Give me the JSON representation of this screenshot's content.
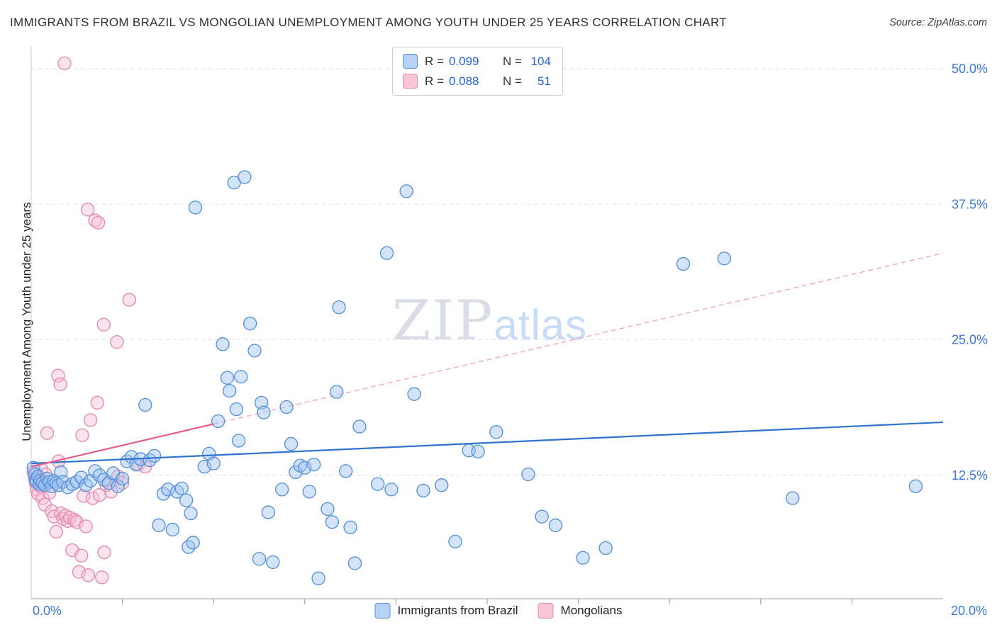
{
  "header": {
    "title": "IMMIGRANTS FROM BRAZIL VS MONGOLIAN UNEMPLOYMENT AMONG YOUTH UNDER 25 YEARS CORRELATION CHART",
    "source": "Source: ZipAtlas.com"
  },
  "watermark": {
    "zip": "ZIP",
    "atlas": "atlas"
  },
  "axes": {
    "y_label": "Unemployment Among Youth under 25 years",
    "x_min_label": "0.0%",
    "x_max_label": "20.0%"
  },
  "stats_legend": {
    "rows": [
      {
        "series": "Immigrants from Brazil",
        "r_label": "R =",
        "r": "0.099",
        "n_label": "N =",
        "n": "104"
      },
      {
        "series": "Mongolians",
        "r_label": "R =",
        "r": "0.088",
        "n_label": "N =",
        "n": "51"
      }
    ]
  },
  "bottom_legend": [
    {
      "label": "Immigrants from Brazil"
    },
    {
      "label": "Mongolians"
    }
  ],
  "colors": {
    "brazil_fill": "#9ec3f1",
    "brazil_stroke": "#5b93d8",
    "brazil_line": "#2e74cf",
    "mongolian_fill": "#f7c2d6",
    "mongolian_stroke": "#e48bb0",
    "mongolian_line": "#e45c8e",
    "mongolian_line_dash": "#f2a0ba",
    "grid": "#e0e0e0",
    "axis_text": "#3b78d8",
    "spine_left": "#cccccc",
    "spine_bottom": "#9a9a9a"
  },
  "chart_data": {
    "type": "scatter",
    "title": "IMMIGRANTS FROM BRAZIL VS MONGOLIAN UNEMPLOYMENT AMONG YOUTH UNDER 25 YEARS CORRELATION CHART",
    "xlabel": "",
    "ylabel": "Unemployment Among Youth under 25 years",
    "xlim": [
      0,
      20
    ],
    "ylim": [
      0,
      52.5
    ],
    "grid": "horizontal-dashed",
    "y_ticks": [
      {
        "value": 50.0,
        "label": "50.0%"
      },
      {
        "value": 37.5,
        "label": "37.5%"
      },
      {
        "value": 25.0,
        "label": "25.0%"
      },
      {
        "value": 12.5,
        "label": "12.5%"
      }
    ],
    "x_tick_values": [
      2,
      4,
      6,
      8,
      10,
      12,
      14,
      16,
      18
    ],
    "series": [
      {
        "name": "Immigrants from Brazil",
        "r": 0.099,
        "n": 104,
        "trend": {
          "x0": 0,
          "y0": 13.6,
          "x1": 20,
          "y1": 17.4,
          "style": "solid"
        },
        "points": [
          [
            0.05,
            13.2
          ],
          [
            0.08,
            12.6
          ],
          [
            0.1,
            12.1
          ],
          [
            0.12,
            11.9
          ],
          [
            0.15,
            12.4
          ],
          [
            0.18,
            11.7
          ],
          [
            0.2,
            12.0
          ],
          [
            0.25,
            11.8
          ],
          [
            0.3,
            11.6
          ],
          [
            0.35,
            12.2
          ],
          [
            0.4,
            11.9
          ],
          [
            0.45,
            11.5
          ],
          [
            0.5,
            12.0
          ],
          [
            0.55,
            11.8
          ],
          [
            0.6,
            11.6
          ],
          [
            0.65,
            12.8
          ],
          [
            0.7,
            11.9
          ],
          [
            0.8,
            11.4
          ],
          [
            0.9,
            11.7
          ],
          [
            1.0,
            11.9
          ],
          [
            1.1,
            12.3
          ],
          [
            1.2,
            11.6
          ],
          [
            1.3,
            12.0
          ],
          [
            1.4,
            12.9
          ],
          [
            1.5,
            12.5
          ],
          [
            1.6,
            12.1
          ],
          [
            1.7,
            11.8
          ],
          [
            1.8,
            12.7
          ],
          [
            1.9,
            11.5
          ],
          [
            2.0,
            12.2
          ],
          [
            2.1,
            13.8
          ],
          [
            2.2,
            14.2
          ],
          [
            2.3,
            13.5
          ],
          [
            2.4,
            14.0
          ],
          [
            2.5,
            19.0
          ],
          [
            2.6,
            13.9
          ],
          [
            2.7,
            14.3
          ],
          [
            2.8,
            7.9
          ],
          [
            2.9,
            10.8
          ],
          [
            3.0,
            11.2
          ],
          [
            3.1,
            7.5
          ],
          [
            3.2,
            11.0
          ],
          [
            3.3,
            11.3
          ],
          [
            3.4,
            10.2
          ],
          [
            3.45,
            5.9
          ],
          [
            3.5,
            9.0
          ],
          [
            3.55,
            6.3
          ],
          [
            3.8,
            13.3
          ],
          [
            3.9,
            14.5
          ],
          [
            4.0,
            13.6
          ],
          [
            4.1,
            17.5
          ],
          [
            4.2,
            24.6
          ],
          [
            4.3,
            21.5
          ],
          [
            4.35,
            20.3
          ],
          [
            4.5,
            18.6
          ],
          [
            4.55,
            15.7
          ],
          [
            4.6,
            21.6
          ],
          [
            4.8,
            26.5
          ],
          [
            4.9,
            24.0
          ],
          [
            5.0,
            4.8
          ],
          [
            5.05,
            19.2
          ],
          [
            5.1,
            18.3
          ],
          [
            5.2,
            9.1
          ],
          [
            5.3,
            4.5
          ],
          [
            5.5,
            11.2
          ],
          [
            5.6,
            18.8
          ],
          [
            5.7,
            15.4
          ],
          [
            5.8,
            12.8
          ],
          [
            5.9,
            13.4
          ],
          [
            6.0,
            13.2
          ],
          [
            6.1,
            11.0
          ],
          [
            6.2,
            13.5
          ],
          [
            6.3,
            3.0
          ],
          [
            6.5,
            9.4
          ],
          [
            6.6,
            8.2
          ],
          [
            6.7,
            20.2
          ],
          [
            6.75,
            28.0
          ],
          [
            6.9,
            12.9
          ],
          [
            7.0,
            7.7
          ],
          [
            7.1,
            4.4
          ],
          [
            7.2,
            17.0
          ],
          [
            7.6,
            11.7
          ],
          [
            7.9,
            11.2
          ],
          [
            8.4,
            20.0
          ],
          [
            8.6,
            11.1
          ],
          [
            9.0,
            11.6
          ],
          [
            9.3,
            6.4
          ],
          [
            9.6,
            14.8
          ],
          [
            9.8,
            14.7
          ],
          [
            3.6,
            37.2
          ],
          [
            4.45,
            39.5
          ],
          [
            4.68,
            40.0
          ],
          [
            7.8,
            33.0
          ],
          [
            8.23,
            38.7
          ],
          [
            10.2,
            16.5
          ],
          [
            10.9,
            12.6
          ],
          [
            11.2,
            8.7
          ],
          [
            11.5,
            7.9
          ],
          [
            12.1,
            4.9
          ],
          [
            12.6,
            5.8
          ],
          [
            14.3,
            32.0
          ],
          [
            15.2,
            32.5
          ],
          [
            16.7,
            10.4
          ],
          [
            19.4,
            11.5
          ]
        ]
      },
      {
        "name": "Mongolians",
        "r": 0.088,
        "n": 51,
        "trend": {
          "x0": 0,
          "y0": 13.3,
          "x1": 20,
          "y1": 33.0,
          "style": "solid-then-dashed",
          "solid_until_x": 4.0
        },
        "points": [
          [
            0.05,
            12.8
          ],
          [
            0.08,
            12.2
          ],
          [
            0.1,
            11.8
          ],
          [
            0.12,
            11.2
          ],
          [
            0.15,
            10.8
          ],
          [
            0.2,
            11.5
          ],
          [
            0.22,
            13.1
          ],
          [
            0.25,
            10.4
          ],
          [
            0.3,
            9.8
          ],
          [
            0.32,
            12.6
          ],
          [
            0.35,
            16.4
          ],
          [
            0.4,
            10.9
          ],
          [
            0.45,
            9.2
          ],
          [
            0.5,
            8.7
          ],
          [
            0.55,
            7.3
          ],
          [
            0.59,
            21.7
          ],
          [
            0.6,
            13.8
          ],
          [
            0.64,
            20.9
          ],
          [
            0.65,
            9.0
          ],
          [
            0.7,
            8.5
          ],
          [
            0.73,
            50.5
          ],
          [
            0.75,
            8.8
          ],
          [
            0.8,
            8.3
          ],
          [
            0.85,
            8.6
          ],
          [
            0.9,
            5.6
          ],
          [
            0.95,
            8.4
          ],
          [
            1.0,
            8.2
          ],
          [
            1.05,
            3.6
          ],
          [
            1.1,
            5.1
          ],
          [
            1.12,
            16.2
          ],
          [
            1.15,
            10.6
          ],
          [
            1.2,
            7.8
          ],
          [
            1.24,
            37.0
          ],
          [
            1.25,
            3.3
          ],
          [
            1.3,
            17.6
          ],
          [
            1.35,
            10.4
          ],
          [
            1.4,
            36.0
          ],
          [
            1.45,
            19.2
          ],
          [
            1.47,
            35.8
          ],
          [
            1.5,
            10.7
          ],
          [
            1.55,
            3.1
          ],
          [
            1.59,
            26.4
          ],
          [
            1.6,
            5.4
          ],
          [
            1.65,
            11.6
          ],
          [
            1.75,
            11.0
          ],
          [
            1.88,
            24.8
          ],
          [
            1.9,
            12.4
          ],
          [
            2.0,
            11.8
          ],
          [
            2.15,
            28.7
          ],
          [
            2.35,
            13.5
          ],
          [
            2.5,
            13.3
          ]
        ]
      }
    ]
  }
}
